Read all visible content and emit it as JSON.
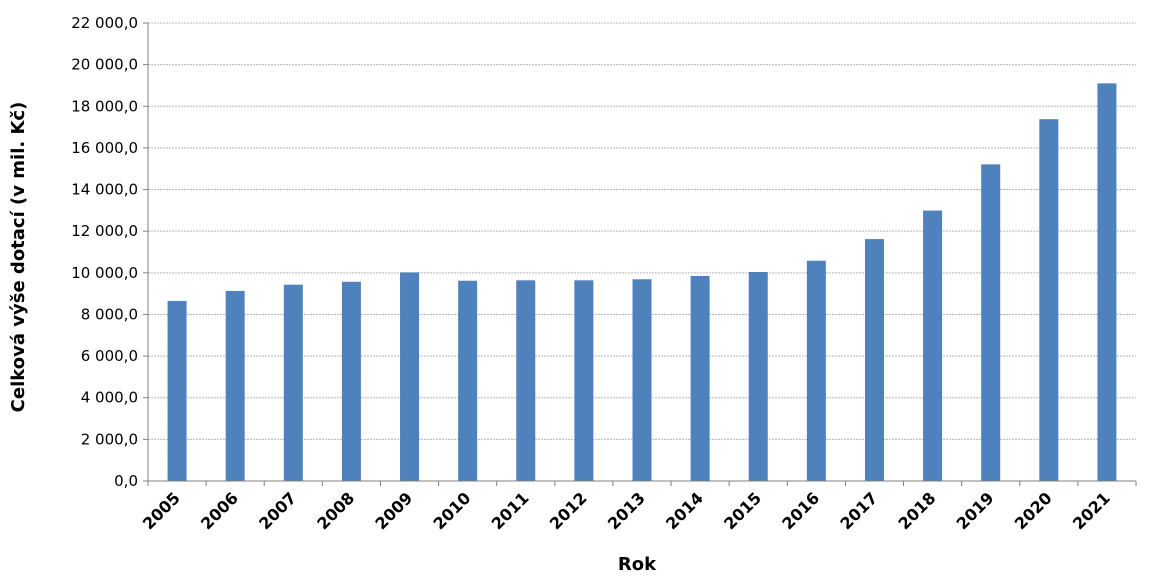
{
  "chart_data": {
    "type": "bar",
    "title": "",
    "xlabel": "Rok",
    "ylabel": "Celková výše dotací (v mil. Kč)",
    "ylim": [
      0,
      22000
    ],
    "ytick_step": 2000,
    "ytick_labels": [
      "0,0",
      "2 000,0",
      "4 000,0",
      "6 000,0",
      "8 000,0",
      "10 000,0",
      "12 000,0",
      "14 000,0",
      "16 000,0",
      "18 000,0",
      "20 000,0",
      "22 000,0"
    ],
    "categories": [
      "2005",
      "2006",
      "2007",
      "2008",
      "2009",
      "2010",
      "2011",
      "2012",
      "2013",
      "2014",
      "2015",
      "2016",
      "2017",
      "2018",
      "2019",
      "2020",
      "2021"
    ],
    "values": [
      8650,
      9130,
      9430,
      9570,
      10020,
      9620,
      9640,
      9640,
      9690,
      9850,
      10040,
      10580,
      11620,
      12990,
      15210,
      17380,
      19100
    ],
    "grid": true,
    "legend": "none",
    "bar_color": "#4f81bd"
  }
}
